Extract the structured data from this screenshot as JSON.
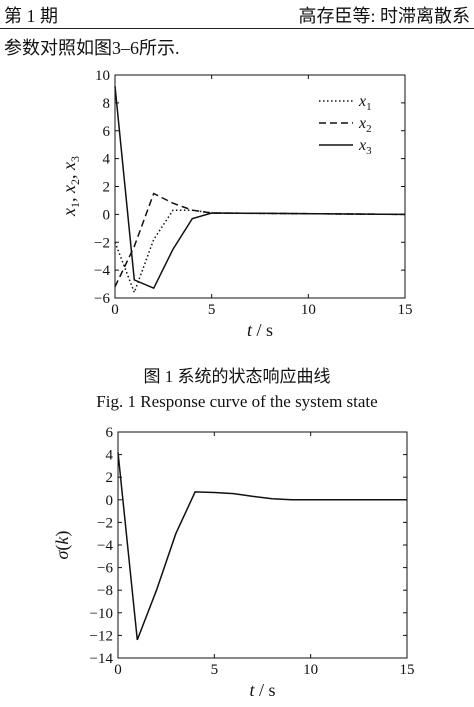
{
  "header": {
    "left": "第 1 期",
    "right": "高存臣等: 时滞离散系"
  },
  "body_text": "参数对照如图3–6所示.",
  "fig1": {
    "caption_cn": "图 1  系统的状态响应曲线",
    "caption_en": "Fig. 1  Response curve of the system state"
  },
  "chart_data": [
    {
      "type": "line",
      "title": "",
      "xlabel": "t / s",
      "ylabel": "x1, x2, x3",
      "xlim": [
        0,
        15
      ],
      "ylim": [
        -6,
        10
      ],
      "xticks": [
        0,
        5,
        10,
        15
      ],
      "yticks": [
        -6,
        -4,
        -2,
        0,
        2,
        4,
        6,
        8,
        10
      ],
      "legend": "top-right",
      "grid": false,
      "series": [
        {
          "name": "x1",
          "style": "dotted",
          "points": [
            [
              0,
              -2
            ],
            [
              1,
              -5.6
            ],
            [
              2,
              -1.8
            ],
            [
              3,
              0.3
            ],
            [
              4,
              0.3
            ],
            [
              5,
              0.1
            ],
            [
              15,
              0
            ]
          ]
        },
        {
          "name": "x2",
          "style": "dashed",
          "points": [
            [
              0,
              -5.2
            ],
            [
              1,
              -2.3
            ],
            [
              2,
              1.5
            ],
            [
              3,
              0.8
            ],
            [
              4,
              0.3
            ],
            [
              5,
              0.1
            ],
            [
              15,
              0
            ]
          ]
        },
        {
          "name": "x3",
          "style": "solid",
          "points": [
            [
              0,
              9.2
            ],
            [
              1,
              -4.7
            ],
            [
              2,
              -5.3
            ],
            [
              3,
              -2.5
            ],
            [
              4,
              -0.3
            ],
            [
              5,
              0.1
            ],
            [
              15,
              0
            ]
          ]
        }
      ]
    },
    {
      "type": "line",
      "title": "",
      "xlabel": "t / s",
      "ylabel": "σ(k)",
      "xlim": [
        0,
        15
      ],
      "ylim": [
        -14,
        6
      ],
      "xticks": [
        0,
        5,
        10,
        15
      ],
      "yticks": [
        -14,
        -12,
        -10,
        -8,
        -6,
        -4,
        -2,
        0,
        2,
        4,
        6
      ],
      "grid": false,
      "series": [
        {
          "points": [
            [
              0,
              4.2
            ],
            [
              1,
              -12.4
            ],
            [
              2,
              -8.0
            ],
            [
              3,
              -3.0
            ],
            [
              4,
              0.7
            ],
            [
              5,
              0.65
            ],
            [
              6,
              0.55
            ],
            [
              7,
              0.3
            ],
            [
              8,
              0.1
            ],
            [
              9,
              0.0
            ],
            [
              15,
              0
            ]
          ]
        }
      ]
    }
  ]
}
